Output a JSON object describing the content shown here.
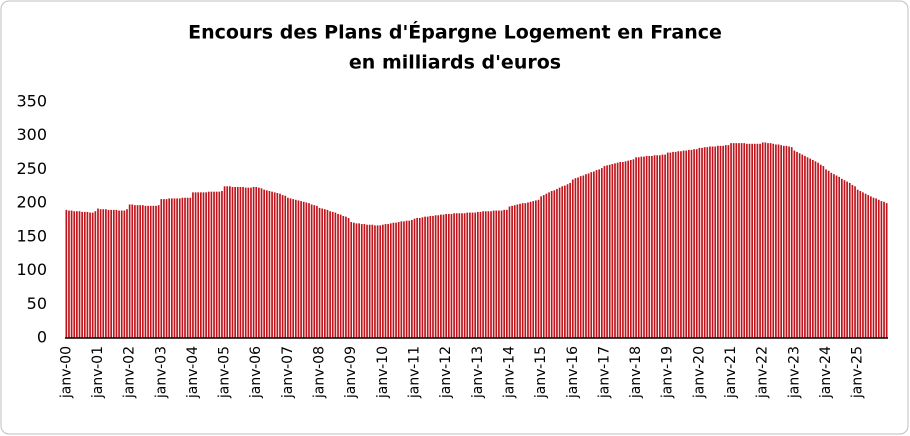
{
  "chart_data": {
    "type": "bar",
    "title": "Encours des Plans d'Épargne Logement en France",
    "subtitle": "en milliards d'euros",
    "color": "#c0141c",
    "ylim": [
      0,
      350
    ],
    "yticks": [
      0,
      50,
      100,
      150,
      200,
      250,
      300,
      350
    ],
    "grid": false,
    "categories": [
      "janv-00",
      null,
      null,
      null,
      null,
      null,
      null,
      null,
      null,
      null,
      null,
      null,
      "janv-01",
      null,
      null,
      null,
      null,
      null,
      null,
      null,
      null,
      null,
      null,
      null,
      "janv-02",
      null,
      null,
      null,
      null,
      null,
      null,
      null,
      null,
      null,
      null,
      null,
      "janv-03",
      null,
      null,
      null,
      null,
      null,
      null,
      null,
      null,
      null,
      null,
      null,
      "janv-04",
      null,
      null,
      null,
      null,
      null,
      null,
      null,
      null,
      null,
      null,
      null,
      "janv-05",
      null,
      null,
      null,
      null,
      null,
      null,
      null,
      null,
      null,
      null,
      null,
      "janv-06",
      null,
      null,
      null,
      null,
      null,
      null,
      null,
      null,
      null,
      null,
      null,
      "janv-07",
      null,
      null,
      null,
      null,
      null,
      null,
      null,
      null,
      null,
      null,
      null,
      "janv-08",
      null,
      null,
      null,
      null,
      null,
      null,
      null,
      null,
      null,
      null,
      null,
      "janv-09",
      null,
      null,
      null,
      null,
      null,
      null,
      null,
      null,
      null,
      null,
      null,
      "janv-10",
      null,
      null,
      null,
      null,
      null,
      null,
      null,
      null,
      null,
      null,
      null,
      "janv-11",
      null,
      null,
      null,
      null,
      null,
      null,
      null,
      null,
      null,
      null,
      null,
      "janv-12",
      null,
      null,
      null,
      null,
      null,
      null,
      null,
      null,
      null,
      null,
      null,
      "janv-13",
      null,
      null,
      null,
      null,
      null,
      null,
      null,
      null,
      null,
      null,
      null,
      "janv-14",
      null,
      null,
      null,
      null,
      null,
      null,
      null,
      null,
      null,
      null,
      null,
      "janv-15",
      null,
      null,
      null,
      null,
      null,
      null,
      null,
      null,
      null,
      null,
      null,
      "janv-16",
      null,
      null,
      null,
      null,
      null,
      null,
      null,
      null,
      null,
      null,
      null,
      "janv-17",
      null,
      null,
      null,
      null,
      null,
      null,
      null,
      null,
      null,
      null,
      null,
      "janv-18",
      null,
      null,
      null,
      null,
      null,
      null,
      null,
      null,
      null,
      null,
      null,
      "janv-19",
      null,
      null,
      null,
      null,
      null,
      null,
      null,
      null,
      null,
      null,
      null,
      "janv-20",
      null,
      null,
      null,
      null,
      null,
      null,
      null,
      null,
      null,
      null,
      null,
      "janv-21",
      null,
      null,
      null,
      null,
      null,
      null,
      null,
      null,
      null,
      null,
      null,
      "janv-22",
      null,
      null,
      null,
      null,
      null,
      null,
      null,
      null,
      null,
      null,
      null,
      "janv-23",
      null,
      null,
      null,
      null,
      null,
      null,
      null,
      null,
      null,
      null,
      null,
      "janv-24",
      null,
      null,
      null,
      null,
      null,
      null,
      null,
      null,
      null,
      null,
      null,
      "janv-25",
      null,
      null,
      null,
      null,
      null,
      null,
      null,
      null,
      null,
      null,
      null
    ],
    "values": [
      190,
      189,
      189,
      188,
      188,
      188,
      187,
      187,
      187,
      186,
      186,
      188,
      192,
      191,
      191,
      191,
      190,
      190,
      190,
      190,
      189,
      189,
      189,
      191,
      198,
      198,
      197,
      197,
      197,
      197,
      196,
      196,
      196,
      196,
      196,
      197,
      206,
      206,
      206,
      207,
      207,
      207,
      207,
      207,
      208,
      208,
      208,
      208,
      216,
      216,
      216,
      216,
      216,
      216,
      217,
      217,
      217,
      217,
      217,
      218,
      225,
      225,
      225,
      224,
      224,
      224,
      224,
      224,
      223,
      223,
      223,
      224,
      224,
      223,
      222,
      220,
      219,
      218,
      217,
      216,
      215,
      214,
      212,
      211,
      208,
      207,
      206,
      205,
      204,
      203,
      202,
      201,
      200,
      198,
      197,
      196,
      193,
      192,
      191,
      190,
      188,
      187,
      186,
      184,
      183,
      181,
      180,
      178,
      172,
      171,
      170,
      170,
      169,
      169,
      168,
      168,
      168,
      167,
      167,
      167,
      168,
      169,
      169,
      170,
      171,
      171,
      172,
      173,
      173,
      174,
      174,
      175,
      177,
      178,
      178,
      179,
      180,
      180,
      181,
      181,
      182,
      182,
      183,
      183,
      184,
      184,
      184,
      185,
      185,
      185,
      185,
      185,
      186,
      186,
      186,
      186,
      187,
      187,
      188,
      188,
      188,
      188,
      189,
      189,
      189,
      189,
      190,
      190,
      195,
      196,
      197,
      198,
      199,
      200,
      200,
      201,
      202,
      203,
      204,
      205,
      210,
      212,
      214,
      216,
      218,
      219,
      221,
      223,
      225,
      226,
      228,
      230,
      235,
      237,
      238,
      240,
      241,
      243,
      244,
      246,
      247,
      249,
      250,
      252,
      255,
      256,
      257,
      258,
      259,
      260,
      261,
      261,
      262,
      263,
      264,
      265,
      268,
      268,
      269,
      269,
      270,
      270,
      270,
      271,
      271,
      271,
      272,
      272,
      275,
      275,
      276,
      276,
      277,
      277,
      278,
      278,
      279,
      279,
      280,
      280,
      282,
      282,
      283,
      283,
      284,
      284,
      284,
      285,
      285,
      285,
      286,
      286,
      289,
      289,
      289,
      289,
      289,
      289,
      288,
      288,
      288,
      288,
      288,
      288,
      290,
      290,
      289,
      289,
      288,
      287,
      287,
      286,
      285,
      285,
      284,
      283,
      278,
      276,
      274,
      272,
      270,
      268,
      266,
      264,
      262,
      260,
      257,
      255,
      250,
      248,
      245,
      243,
      241,
      239,
      236,
      234,
      232,
      230,
      227,
      225,
      220,
      218,
      216,
      214,
      212,
      210,
      208,
      207,
      205,
      203,
      202,
      200
    ]
  }
}
